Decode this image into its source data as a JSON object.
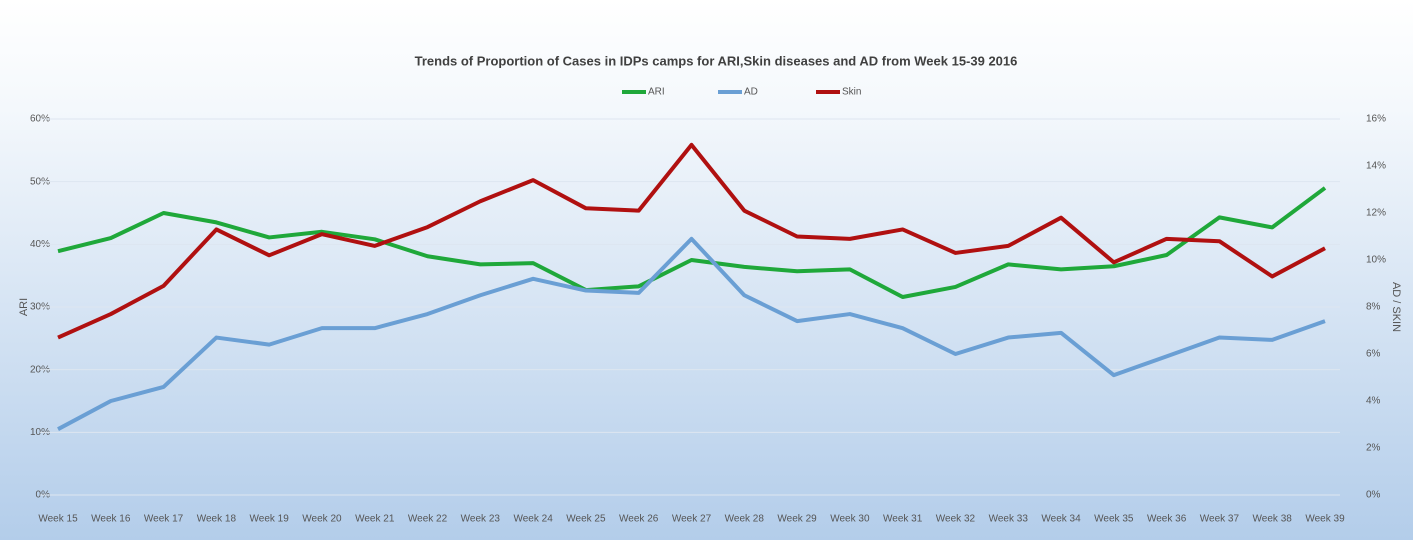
{
  "chart_data": {
    "type": "line",
    "title": "Trends of Proportion of Cases in IDPs camps for ARI,Skin diseases and AD from Week  15-39 2016",
    "y_label": "ARI",
    "y2_label": "AD / SKIN",
    "categories": [
      "Week 15",
      "Week 16",
      "Week 17",
      "Week 18",
      "Week 19",
      "Week 20",
      "Week 21",
      "Week 22",
      "Week 23",
      "Week 24",
      "Week 25",
      "Week 26",
      "Week 27",
      "Week 28",
      "Week 29",
      "Week 30",
      "Week 31",
      "Week 32",
      "Week 33",
      "Week 34",
      "Week 35",
      "Week 36",
      "Week 37",
      "Week 38",
      "Week 39"
    ],
    "series": [
      {
        "name": "ARI",
        "color": "#1fa83a",
        "axis": "y",
        "values": [
          38.9,
          41,
          45,
          43.5,
          41.1,
          42,
          40.8,
          38.1,
          36.8,
          37,
          32.7,
          33.3,
          37.5,
          36.4,
          35.7,
          36,
          31.6,
          33.2,
          36.8,
          36,
          36.5,
          38.3,
          44.3,
          42.7,
          49
        ]
      },
      {
        "name": "AD",
        "color": "#6a9fd4",
        "axis": "y2",
        "values": [
          2.8,
          4.0,
          4.6,
          6.7,
          6.4,
          7.1,
          7.1,
          7.7,
          8.5,
          9.2,
          8.7,
          8.6,
          10.9,
          8.5,
          7.4,
          7.7,
          7.1,
          6.0,
          6.7,
          6.9,
          5.1,
          5.9,
          6.7,
          6.6,
          7.4
        ]
      },
      {
        "name": "Skin",
        "color": "#b01010",
        "axis": "y2",
        "values": [
          6.7,
          7.7,
          8.9,
          11.3,
          10.2,
          11.1,
          10.6,
          11.4,
          12.5,
          13.4,
          12.2,
          12.1,
          14.9,
          12.1,
          11.0,
          10.9,
          11.3,
          10.3,
          10.6,
          11.8,
          9.9,
          10.9,
          10.8,
          9.3,
          10.5
        ]
      }
    ],
    "ylim": [
      0,
      60
    ],
    "yticks": [
      {
        "value": 0,
        "label": "0%"
      },
      {
        "value": 10,
        "label": "10%"
      },
      {
        "value": 20,
        "label": "20%"
      },
      {
        "value": 30,
        "label": "30%"
      },
      {
        "value": 40,
        "label": "40%"
      },
      {
        "value": 50,
        "label": "50%"
      },
      {
        "value": 60,
        "label": "60%"
      }
    ],
    "y2lim": [
      0,
      16
    ],
    "y2ticks": [
      {
        "value": 0,
        "label": "0%"
      },
      {
        "value": 2,
        "label": "2%"
      },
      {
        "value": 4,
        "label": "4%"
      },
      {
        "value": 6,
        "label": "6%"
      },
      {
        "value": 8,
        "label": "8%"
      },
      {
        "value": 10,
        "label": "10%"
      },
      {
        "value": 12,
        "label": "12%"
      },
      {
        "value": 14,
        "label": "14%"
      },
      {
        "value": 16,
        "label": "16%"
      }
    ],
    "grid": true,
    "legend": "top"
  }
}
